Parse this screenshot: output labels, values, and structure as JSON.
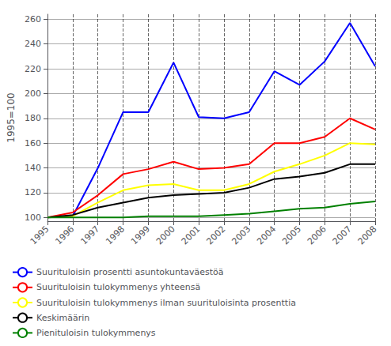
{
  "chart_data": {
    "type": "line",
    "ylabel": "1995=100",
    "x": [
      1995,
      1996,
      1997,
      1998,
      1999,
      2000,
      2001,
      2002,
      2003,
      2004,
      2005,
      2006,
      2007,
      2008
    ],
    "series": [
      {
        "name": "Suurituloisin prosentti asuntokuntaväestöä",
        "color": "#0000FF",
        "values": [
          100,
          101,
          140,
          185,
          185,
          225,
          181,
          180,
          185,
          218,
          207,
          226,
          257,
          222
        ]
      },
      {
        "name": "Suurituloisin tulokymmenys yhteensä",
        "color": "#FF0000",
        "values": [
          100,
          104,
          118,
          135,
          139,
          145,
          139,
          140,
          143,
          160,
          160,
          165,
          180,
          171
        ]
      },
      {
        "name": "Suurituloisin tulokymmenys ilman suurituloisinta prosenttia",
        "color": "#FFFF00",
        "values": [
          100,
          101,
          112,
          122,
          126,
          127,
          122,
          122,
          127,
          137,
          143,
          150,
          160,
          159
        ]
      },
      {
        "name": "Keskimäärin",
        "color": "#000000",
        "values": [
          100,
          102,
          108,
          112,
          116,
          118,
          119,
          120,
          124,
          131,
          133,
          136,
          143,
          143
        ]
      },
      {
        "name": "Pienituloisin tulokymmenys",
        "color": "#008000",
        "values": [
          100,
          100,
          100,
          100,
          101,
          101,
          101,
          102,
          103,
          105,
          107,
          108,
          111,
          113
        ]
      }
    ],
    "xlim": [
      1995,
      2008
    ],
    "xticks": [
      1995,
      1996,
      1997,
      1998,
      1999,
      2000,
      2001,
      2002,
      2003,
      2004,
      2005,
      2006,
      2007,
      2008
    ],
    "ylim": [
      97,
      264
    ],
    "yticks": [
      100,
      120,
      140,
      160,
      180,
      200,
      220,
      240,
      260
    ],
    "grid": true,
    "legend": "bottom"
  }
}
